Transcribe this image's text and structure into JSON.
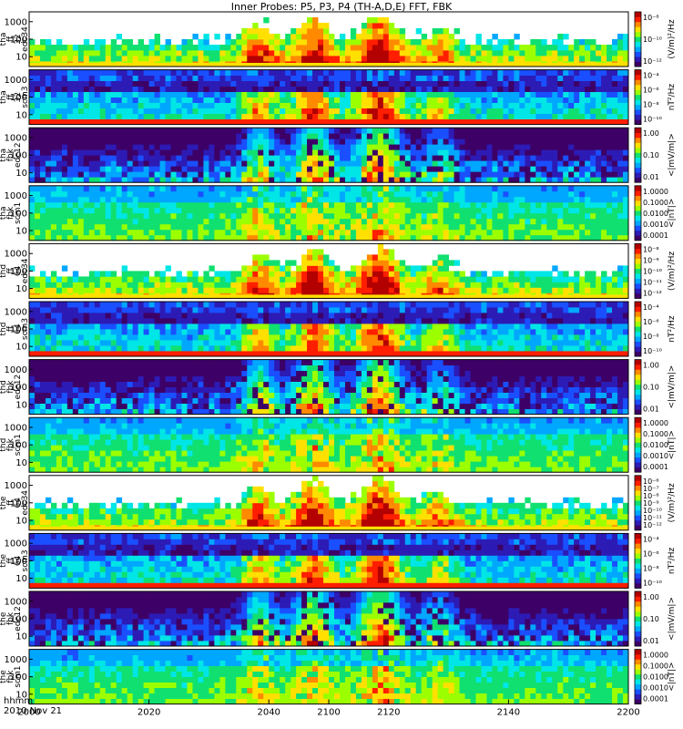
{
  "chart_data": {
    "type": "heatmap",
    "title": "Inner Probes: P5, P3, P4 (TH-A,D,E) FFT, FBK",
    "x_tick_labels": [
      "2000",
      "2020",
      "2040",
      "2100",
      "2120",
      "2140",
      "2200"
    ],
    "x_axis_caption": [
      "hhmm",
      "2010 Nov 21"
    ],
    "panels": [
      {
        "probe": "tha",
        "ylabel": [
          "tha",
          "ff",
          "32",
          "edc34"
        ],
        "kind": "fft_e",
        "y_ticks": [
          "1000",
          "100",
          "10"
        ],
        "cbar_ticks": [
          "10⁻⁸",
          "10⁻¹⁰",
          "10⁻¹²"
        ],
        "cbar_label": "(V/m)²/Hz"
      },
      {
        "probe": "tha",
        "ylabel": [
          "tha",
          "ff",
          "32",
          "scm3"
        ],
        "kind": "fft_b",
        "y_ticks": [
          "1000",
          "100",
          "10"
        ],
        "cbar_ticks": [
          "10⁻⁴",
          "10⁻⁶",
          "10⁻⁸",
          "10⁻¹⁰"
        ],
        "cbar_label": "nT²/Hz"
      },
      {
        "probe": "tha",
        "ylabel": [
          "tha",
          "fbk",
          "edc12"
        ],
        "kind": "fbk_e",
        "y_ticks": [
          "1000",
          "100",
          "10"
        ],
        "cbar_ticks": [
          "1.00",
          "0.10",
          "0.01"
        ],
        "cbar_label": "<|mV/m|>"
      },
      {
        "probe": "tha",
        "ylabel": [
          "tha",
          "fbk",
          "scm1"
        ],
        "kind": "fbk_b",
        "y_ticks": [
          "1000",
          "100",
          "10"
        ],
        "cbar_ticks": [
          "1.0000",
          "0.1000",
          "0.0100",
          "0.0010",
          "0.0001"
        ],
        "cbar_label": "<|nT|>"
      },
      {
        "probe": "thd",
        "ylabel": [
          "thd",
          "ff",
          "64",
          "edc34"
        ],
        "kind": "fft_e",
        "y_ticks": [
          "1000",
          "100",
          "10"
        ],
        "cbar_ticks": [
          "10⁻⁸",
          "10⁻⁹",
          "10⁻¹⁰",
          "10⁻¹¹",
          "10⁻¹²"
        ],
        "cbar_label": "(V/m)²/Hz"
      },
      {
        "probe": "thd",
        "ylabel": [
          "thd",
          "ff",
          "64",
          "scm3"
        ],
        "kind": "fft_b",
        "y_ticks": [
          "1000",
          "100",
          "10"
        ],
        "cbar_ticks": [
          "10⁻⁴",
          "10⁻⁶",
          "10⁻⁸",
          "10⁻¹⁰"
        ],
        "cbar_label": "nT²/Hz"
      },
      {
        "probe": "thd",
        "ylabel": [
          "thd",
          "fbk",
          "edc12"
        ],
        "kind": "fbk_e",
        "y_ticks": [
          "1000",
          "100",
          "10"
        ],
        "cbar_ticks": [
          "1.00",
          "0.10",
          "0.01"
        ],
        "cbar_label": "<|mV/m|>"
      },
      {
        "probe": "thd",
        "ylabel": [
          "thd",
          "fbk",
          "scm1"
        ],
        "kind": "fbk_b",
        "y_ticks": [
          "1000",
          "100",
          "10"
        ],
        "cbar_ticks": [
          "1.0000",
          "0.1000",
          "0.0100",
          "0.0010",
          "0.0001"
        ],
        "cbar_label": "<|nT|>"
      },
      {
        "probe": "the",
        "ylabel": [
          "the",
          "ff",
          "64",
          "edc34"
        ],
        "kind": "fft_e",
        "y_ticks": [
          "1000",
          "100",
          "10"
        ],
        "cbar_ticks": [
          "10⁻⁶",
          "10⁻⁷",
          "10⁻⁸",
          "10⁻⁹",
          "10⁻¹⁰",
          "10⁻¹¹",
          "10⁻¹²"
        ],
        "cbar_label": "(V/m)²/Hz"
      },
      {
        "probe": "the",
        "ylabel": [
          "the",
          "ff",
          "64",
          "scm3"
        ],
        "kind": "fft_b",
        "y_ticks": [
          "1000",
          "100",
          "10"
        ],
        "cbar_ticks": [
          "10⁻⁴",
          "10⁻⁶",
          "10⁻⁸",
          "10⁻¹⁰"
        ],
        "cbar_label": "nT²/Hz"
      },
      {
        "probe": "the",
        "ylabel": [
          "the",
          "fbk",
          "edc12"
        ],
        "kind": "fbk_e",
        "y_ticks": [
          "1000",
          "100",
          "10"
        ],
        "cbar_ticks": [
          "1.00",
          "0.10",
          "0.01"
        ],
        "cbar_label": "<|mV/m|>"
      },
      {
        "probe": "the",
        "ylabel": [
          "the",
          "fbk",
          "scm1"
        ],
        "kind": "fbk_b",
        "y_ticks": [
          "1000",
          "100",
          "10"
        ],
        "cbar_ticks": [
          "1.0000",
          "0.1000",
          "0.0100",
          "0.0010",
          "0.0001"
        ],
        "cbar_label": "<|nT|>"
      }
    ],
    "colormap": [
      "#ffffff",
      "#3d0066",
      "#2d1bb5",
      "#1a4fff",
      "#00a7ff",
      "#00e6e6",
      "#10e070",
      "#9cff00",
      "#ffe000",
      "#ff8a00",
      "#ff1e00",
      "#b30000"
    ]
  }
}
